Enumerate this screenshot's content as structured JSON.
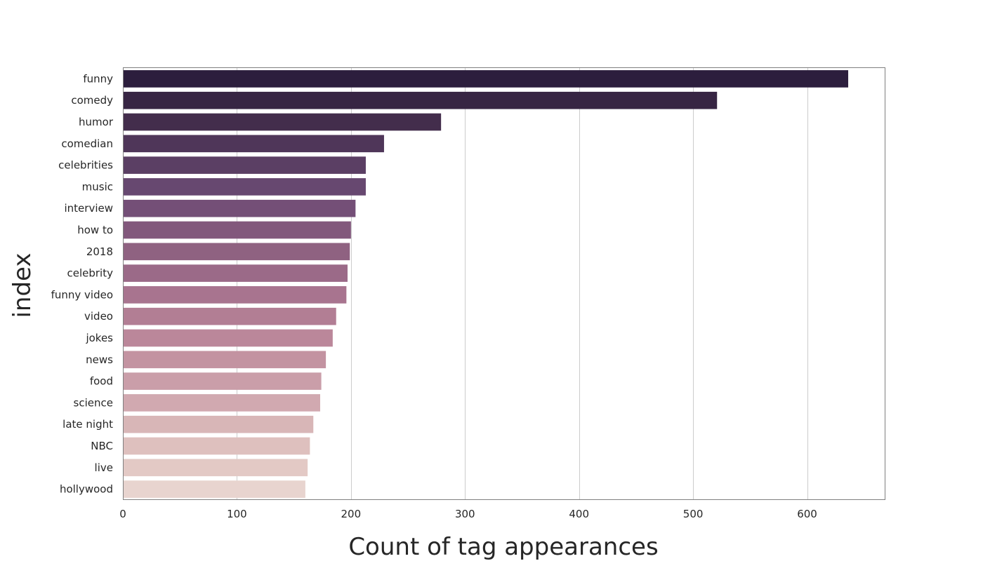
{
  "chart_data": {
    "type": "bar",
    "orientation": "horizontal",
    "title": "",
    "xlabel": "Count of tag appearances",
    "ylabel": "index",
    "xlim": [
      0,
      668
    ],
    "xticks": [
      0,
      100,
      200,
      300,
      400,
      500,
      600
    ],
    "grid": "vertical gridlines",
    "categories": [
      "funny",
      "comedy",
      "humor",
      "comedian",
      "celebrities",
      "music",
      "interview",
      "how to",
      "2018",
      "celebrity",
      "funny video",
      "video",
      "jokes",
      "news",
      "food",
      "science",
      "late night",
      "NBC",
      "live",
      "hollywood"
    ],
    "values": [
      636,
      521,
      279,
      229,
      213,
      213,
      204,
      200,
      199,
      197,
      196,
      187,
      184,
      178,
      174,
      173,
      167,
      164,
      162,
      160
    ],
    "colors": [
      "#2c1e3d",
      "#372543",
      "#432d4c",
      "#4f3659",
      "#5b3f64",
      "#674870",
      "#744f77",
      "#82587c",
      "#8f6281",
      "#9b6a88",
      "#a8748f",
      "#b27e94",
      "#bb879a",
      "#c393a1",
      "#ca9ea9",
      "#d1a9b0",
      "#d8b6b7",
      "#dec0be",
      "#e3c9c5",
      "#e8d4cf"
    ]
  }
}
